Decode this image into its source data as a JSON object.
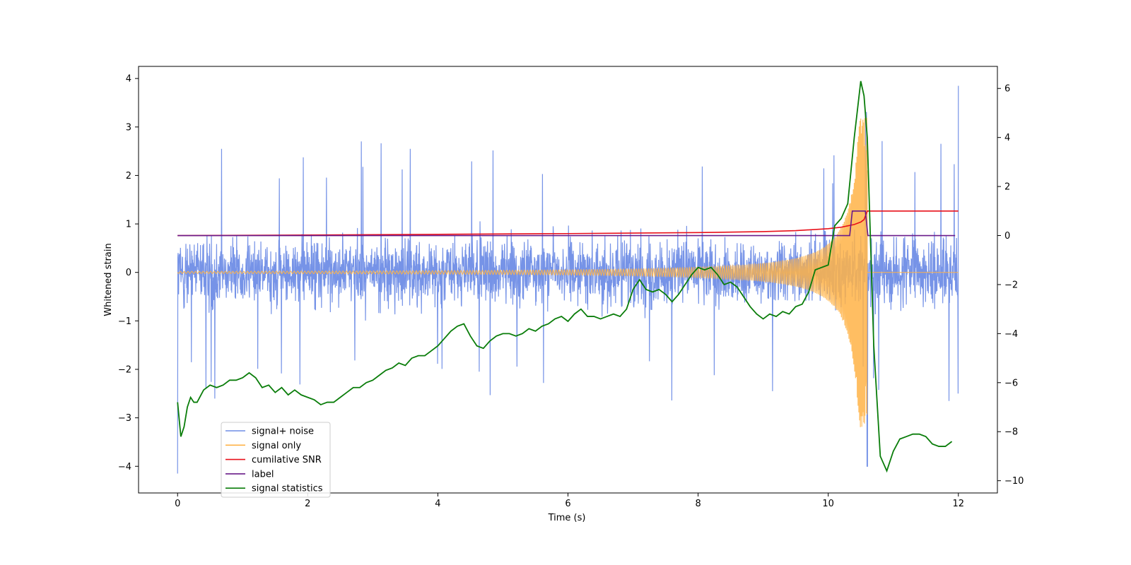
{
  "chart_data": {
    "type": "line",
    "title": "",
    "xlabel": "Time (s)",
    "ylabel": "Whitened strain",
    "y2label": "",
    "xlim": [
      -0.6,
      12.6
    ],
    "ylim": [
      -4.55,
      4.25
    ],
    "y2lim": [
      -10.5,
      6.9
    ],
    "xticks": [
      0,
      2,
      4,
      6,
      8,
      10,
      12
    ],
    "yticks": [
      -4,
      -3,
      -2,
      -1,
      0,
      1,
      2,
      3,
      4
    ],
    "y2ticks": [
      -10,
      -8,
      -6,
      -4,
      -2,
      0,
      2,
      4,
      6
    ],
    "grid": false,
    "legend_position": "lower-left",
    "series": [
      {
        "name": "signal+ noise",
        "axis": "left",
        "color": "#6f8de6",
        "description_values": "dense noise band roughly from -1.4 to 1.4 with spikes up to 3.85 and down to -4.15 over 0 to 12 s",
        "band": {
          "min_typical": -1.4,
          "max_typical": 1.4,
          "spike_max": 3.85,
          "spike_min": -4.15
        }
      },
      {
        "name": "signal only",
        "axis": "left",
        "color": "#ffb347",
        "chirp": {
          "t_start": 0,
          "t_merger": 10.6,
          "amp_start": 0.02,
          "amp_peak": 3.2
        }
      },
      {
        "name": "cumilative SNR",
        "axis": "right",
        "color": "#e8101a",
        "x": [
          0,
          2,
          4,
          6,
          8,
          9,
          9.5,
          10,
          10.2,
          10.4,
          10.5,
          10.55,
          10.6,
          11,
          12
        ],
        "y": [
          0,
          0.02,
          0.05,
          0.08,
          0.12,
          0.16,
          0.2,
          0.28,
          0.34,
          0.45,
          0.55,
          0.65,
          1.0,
          1.0,
          1.0
        ]
      },
      {
        "name": "label",
        "axis": "right",
        "color": "#6a1b8a",
        "x": [
          0,
          10.33,
          10.37,
          10.57,
          10.61,
          11.95
        ],
        "y": [
          0,
          0,
          1,
          1,
          0,
          0
        ]
      },
      {
        "name": "signal statistics",
        "axis": "right",
        "color": "#0a7d0a",
        "x": [
          0,
          0.05,
          0.1,
          0.15,
          0.2,
          0.25,
          0.3,
          0.4,
          0.5,
          0.6,
          0.7,
          0.8,
          0.9,
          1.0,
          1.05,
          1.1,
          1.2,
          1.3,
          1.4,
          1.5,
          1.6,
          1.7,
          1.8,
          1.9,
          2.0,
          2.1,
          2.2,
          2.3,
          2.4,
          2.5,
          2.6,
          2.7,
          2.8,
          2.9,
          3.0,
          3.1,
          3.2,
          3.3,
          3.4,
          3.5,
          3.6,
          3.7,
          3.8,
          3.9,
          4.0,
          4.1,
          4.2,
          4.3,
          4.4,
          4.5,
          4.6,
          4.7,
          4.8,
          4.9,
          5.0,
          5.1,
          5.2,
          5.3,
          5.4,
          5.5,
          5.6,
          5.7,
          5.8,
          5.9,
          6.0,
          6.1,
          6.2,
          6.3,
          6.4,
          6.5,
          6.6,
          6.7,
          6.8,
          6.9,
          7.0,
          7.1,
          7.2,
          7.3,
          7.4,
          7.5,
          7.6,
          7.7,
          7.8,
          7.9,
          8.0,
          8.1,
          8.2,
          8.3,
          8.4,
          8.5,
          8.6,
          8.7,
          8.8,
          8.9,
          9.0,
          9.1,
          9.2,
          9.3,
          9.4,
          9.5,
          9.6,
          9.7,
          9.8,
          9.9,
          10.0,
          10.1,
          10.2,
          10.3,
          10.4,
          10.5,
          10.55,
          10.6,
          10.7,
          10.8,
          10.9,
          11.0,
          11.1,
          11.2,
          11.3,
          11.4,
          11.5,
          11.6,
          11.7,
          11.8,
          11.9
        ],
        "y": [
          -6.8,
          -8.2,
          -7.8,
          -7.0,
          -6.6,
          -6.8,
          -6.8,
          -6.3,
          -6.1,
          -6.2,
          -6.1,
          -5.9,
          -5.9,
          -5.8,
          -5.7,
          -5.6,
          -5.8,
          -6.2,
          -6.1,
          -6.4,
          -6.2,
          -6.5,
          -6.3,
          -6.5,
          -6.6,
          -6.7,
          -6.9,
          -6.8,
          -6.8,
          -6.6,
          -6.4,
          -6.2,
          -6.2,
          -6.0,
          -5.9,
          -5.7,
          -5.5,
          -5.4,
          -5.2,
          -5.3,
          -5.0,
          -4.9,
          -4.9,
          -4.7,
          -4.5,
          -4.2,
          -3.9,
          -3.7,
          -3.6,
          -4.1,
          -4.5,
          -4.6,
          -4.3,
          -4.1,
          -4.0,
          -4.0,
          -4.1,
          -4.0,
          -3.8,
          -3.9,
          -3.7,
          -3.6,
          -3.4,
          -3.3,
          -3.5,
          -3.2,
          -3.0,
          -3.3,
          -3.3,
          -3.4,
          -3.3,
          -3.2,
          -3.3,
          -3.0,
          -2.2,
          -1.8,
          -2.2,
          -2.3,
          -2.2,
          -2.4,
          -2.7,
          -2.4,
          -2.0,
          -1.6,
          -1.3,
          -1.4,
          -1.3,
          -1.6,
          -2.0,
          -1.9,
          -2.1,
          -2.5,
          -2.9,
          -3.2,
          -3.4,
          -3.2,
          -3.3,
          -3.1,
          -3.2,
          -2.9,
          -2.8,
          -2.3,
          -1.4,
          -1.3,
          -1.2,
          0.4,
          0.7,
          1.3,
          4.0,
          6.3,
          5.7,
          4.0,
          -4.5,
          -9.0,
          -9.6,
          -8.8,
          -8.3,
          -8.2,
          -8.1,
          -8.1,
          -8.2,
          -8.5,
          -8.6,
          -8.6,
          -8.4
        ]
      }
    ]
  }
}
